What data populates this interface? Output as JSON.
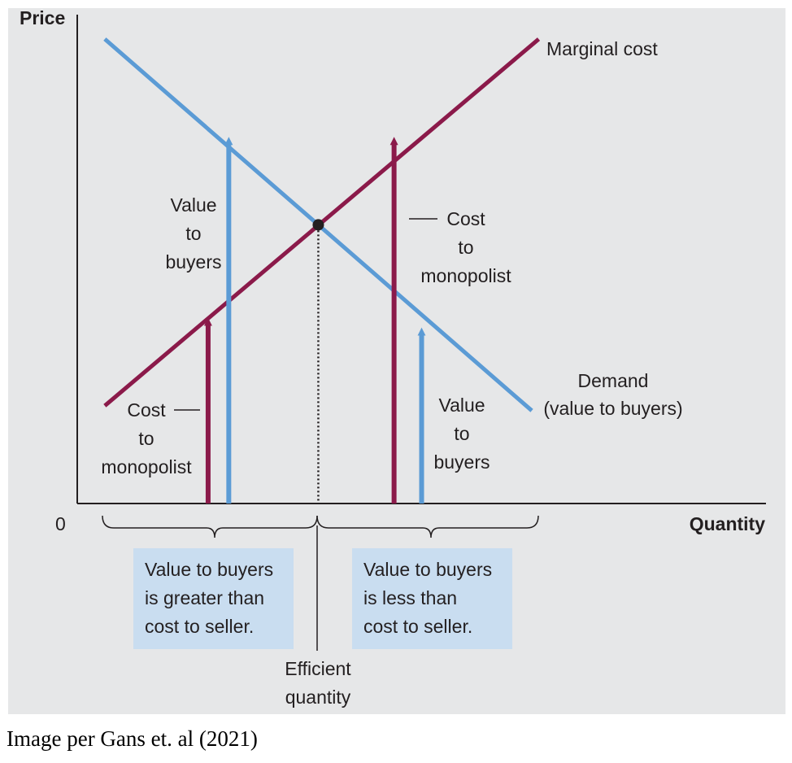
{
  "chart_data": {
    "type": "line",
    "title": "",
    "xlabel": "Quantity",
    "ylabel": "Price",
    "origin_label": "0",
    "xlim": [
      0,
      10
    ],
    "ylim": [
      0,
      10
    ],
    "grid": false,
    "series": [
      {
        "name": "Demand",
        "name_line2": "(value to buyers)",
        "color": "#5b9bd5",
        "x": [
          0.4,
          6.6
        ],
        "y": [
          9.5,
          1.9
        ]
      },
      {
        "name": "Marginal cost",
        "color": "#8b1a4a",
        "x": [
          0.4,
          6.7
        ],
        "y": [
          2.0,
          9.5
        ]
      }
    ],
    "equilibrium": {
      "x": 3.5,
      "y": 5.7
    },
    "arrows": [
      {
        "x": 1.9,
        "to_y": 3.8,
        "color": "#8b1a4a"
      },
      {
        "x": 2.2,
        "to_y": 7.5,
        "color": "#5b9bd5"
      },
      {
        "x": 4.6,
        "to_y": 7.5,
        "color": "#8b1a4a"
      },
      {
        "x": 5.0,
        "to_y": 3.6,
        "color": "#5b9bd5"
      }
    ],
    "annotations": {
      "value_left": [
        "Value",
        "to",
        "buyers"
      ],
      "cost_left": [
        "Cost",
        "to",
        "monopolist"
      ],
      "cost_right": [
        "Cost",
        "to",
        "monopolist"
      ],
      "value_right": [
        "Value",
        "to",
        "buyers"
      ],
      "efficient": [
        "Efficient",
        "quantity"
      ]
    },
    "boxes": {
      "left": "Value to buyers\nis greater than\ncost to seller.",
      "right": "Value to buyers\nis less than\ncost to seller."
    }
  },
  "colors": {
    "demand": "#5b9bd5",
    "marginal_cost": "#8b1a4a",
    "box": "#c9ddf0",
    "background": "#e6e7e8"
  },
  "caption": "Image per Gans et. al (2021)"
}
